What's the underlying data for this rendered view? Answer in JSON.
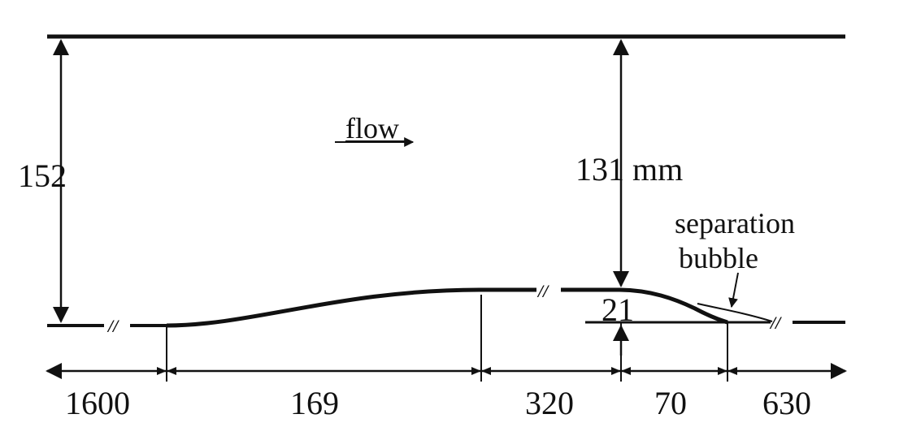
{
  "labels": {
    "flow": "flow",
    "height_inlet": "152",
    "height_throat": "131 mm",
    "step_height": "21",
    "separation_line1": "separation",
    "separation_line2": "bubble"
  },
  "dimensions": {
    "d1": "1600",
    "d2": "169",
    "d3": "320",
    "d4": "70",
    "d5": "630"
  },
  "colors": {
    "ink": "#111111",
    "background": "#ffffff"
  }
}
